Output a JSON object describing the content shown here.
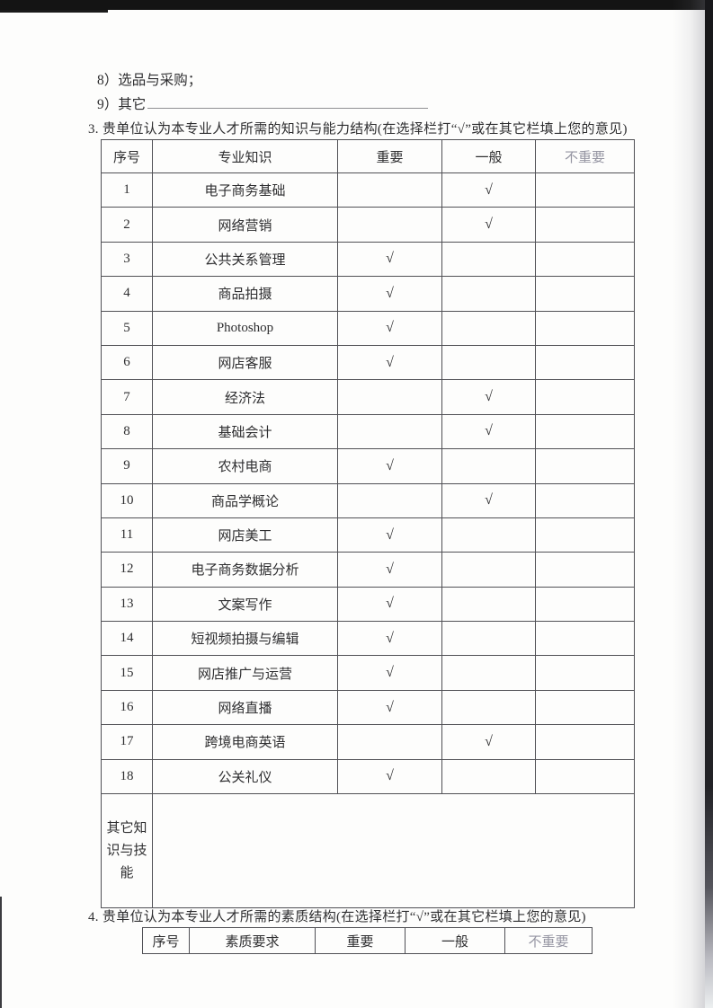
{
  "page": {
    "items": [
      {
        "text": "8）选品与采购；"
      },
      {
        "text": "9）其它"
      }
    ],
    "section3_title": "3. 贵单位认为本专业人才所需的知识与能力结构(在选择栏打“√”或在其它栏填上您的意见)",
    "section4_title": "4. 贵单位认为本专业人才所需的素质结构(在选择栏打“√”或在其它栏填上您的意见)"
  },
  "knowledge_table": {
    "headers": [
      "序号",
      "专业知识",
      "重要",
      "一般",
      "不重要"
    ],
    "check_symbol": "√",
    "rows": [
      {
        "no": "1",
        "subject": "电子商务基础",
        "important": "",
        "general": "√",
        "not_important": ""
      },
      {
        "no": "2",
        "subject": "网络营销",
        "important": "",
        "general": "√",
        "not_important": ""
      },
      {
        "no": "3",
        "subject": "公共关系管理",
        "important": "√",
        "general": "",
        "not_important": ""
      },
      {
        "no": "4",
        "subject": "商品拍摄",
        "important": "√",
        "general": "",
        "not_important": ""
      },
      {
        "no": "5",
        "subject": "Photoshop",
        "important": "√",
        "general": "",
        "not_important": ""
      },
      {
        "no": "6",
        "subject": "网店客服",
        "important": "√",
        "general": "",
        "not_important": ""
      },
      {
        "no": "7",
        "subject": "经济法",
        "important": "",
        "general": "√",
        "not_important": ""
      },
      {
        "no": "8",
        "subject": "基础会计",
        "important": "",
        "general": "√",
        "not_important": ""
      },
      {
        "no": "9",
        "subject": "农村电商",
        "important": "√",
        "general": "",
        "not_important": ""
      },
      {
        "no": "10",
        "subject": "商品学概论",
        "important": "",
        "general": "√",
        "not_important": ""
      },
      {
        "no": "11",
        "subject": "网店美工",
        "important": "√",
        "general": "",
        "not_important": ""
      },
      {
        "no": "12",
        "subject": "电子商务数据分析",
        "important": "√",
        "general": "",
        "not_important": ""
      },
      {
        "no": "13",
        "subject": "文案写作",
        "important": "√",
        "general": "",
        "not_important": ""
      },
      {
        "no": "14",
        "subject": "短视频拍摄与编辑",
        "important": "√",
        "general": "",
        "not_important": ""
      },
      {
        "no": "15",
        "subject": "网店推广与运营",
        "important": "√",
        "general": "",
        "not_important": ""
      },
      {
        "no": "16",
        "subject": "网络直播",
        "important": "√",
        "general": "",
        "not_important": ""
      },
      {
        "no": "17",
        "subject": "跨境电商英语",
        "important": "",
        "general": "√",
        "not_important": ""
      },
      {
        "no": "18",
        "subject": "公关礼仪",
        "important": "√",
        "general": "",
        "not_important": ""
      }
    ],
    "other_row_label": "其它知识与技能"
  },
  "quality_table": {
    "headers": [
      "序号",
      "素质要求",
      "重要",
      "一般",
      "不重要"
    ]
  },
  "colors": {
    "ink": "#2e2e30",
    "table_border": "#505055",
    "faded_header": "#9595a2",
    "scan_band": "#141414"
  }
}
